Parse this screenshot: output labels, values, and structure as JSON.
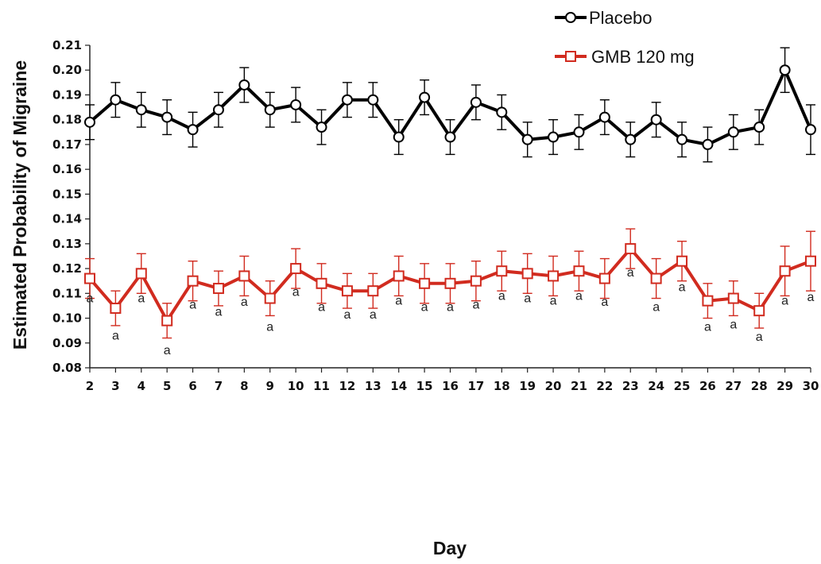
{
  "chart_data": {
    "type": "line",
    "xlabel": "Day",
    "ylabel": "Estimated Probability of Migraine",
    "ylim": [
      0.08,
      0.21
    ],
    "ytick_step": 0.01,
    "x": [
      2,
      3,
      4,
      5,
      6,
      7,
      8,
      9,
      10,
      11,
      12,
      13,
      14,
      15,
      16,
      17,
      18,
      19,
      20,
      21,
      22,
      23,
      24,
      25,
      26,
      27,
      28,
      29,
      30
    ],
    "legend_position": "top-right",
    "grid": false,
    "series": [
      {
        "name": "Placebo",
        "color": "#000000",
        "marker": "circle",
        "values": [
          0.179,
          0.188,
          0.184,
          0.181,
          0.176,
          0.184,
          0.194,
          0.184,
          0.186,
          0.177,
          0.188,
          0.188,
          0.173,
          0.189,
          0.173,
          0.187,
          0.183,
          0.172,
          0.173,
          0.175,
          0.181,
          0.172,
          0.18,
          0.172,
          0.17,
          0.175,
          0.177,
          0.2,
          0.176
        ],
        "errors": [
          0.007,
          0.007,
          0.007,
          0.007,
          0.007,
          0.007,
          0.007,
          0.007,
          0.007,
          0.007,
          0.007,
          0.007,
          0.007,
          0.007,
          0.007,
          0.007,
          0.007,
          0.007,
          0.007,
          0.007,
          0.007,
          0.007,
          0.007,
          0.007,
          0.007,
          0.007,
          0.007,
          0.009,
          0.01
        ]
      },
      {
        "name": "GMB 120 mg",
        "color": "#d12b1f",
        "marker": "square",
        "values": [
          0.116,
          0.104,
          0.118,
          0.099,
          0.115,
          0.112,
          0.117,
          0.108,
          0.12,
          0.114,
          0.111,
          0.111,
          0.117,
          0.114,
          0.114,
          0.115,
          0.119,
          0.118,
          0.117,
          0.119,
          0.116,
          0.128,
          0.116,
          0.123,
          0.107,
          0.108,
          0.103,
          0.119,
          0.123
        ],
        "errors": [
          0.008,
          0.007,
          0.008,
          0.007,
          0.008,
          0.007,
          0.008,
          0.007,
          0.008,
          0.008,
          0.007,
          0.007,
          0.008,
          0.008,
          0.008,
          0.008,
          0.008,
          0.008,
          0.008,
          0.008,
          0.008,
          0.008,
          0.008,
          0.008,
          0.007,
          0.007,
          0.007,
          0.01,
          0.012
        ]
      }
    ],
    "annotations": [
      {
        "x": 2,
        "y": 0.108,
        "text": "a"
      },
      {
        "x": 3,
        "y": 0.093,
        "text": "a"
      },
      {
        "x": 4,
        "y": 0.108,
        "text": "a"
      },
      {
        "x": 5,
        "y": 0.087,
        "text": "a"
      },
      {
        "x": 6,
        "y": 0.1055,
        "text": "a"
      },
      {
        "x": 7,
        "y": 0.1025,
        "text": "a"
      },
      {
        "x": 8,
        "y": 0.1065,
        "text": "a"
      },
      {
        "x": 9,
        "y": 0.0965,
        "text": "a"
      },
      {
        "x": 10,
        "y": 0.1105,
        "text": "a"
      },
      {
        "x": 11,
        "y": 0.1045,
        "text": "a"
      },
      {
        "x": 12,
        "y": 0.1015,
        "text": "a"
      },
      {
        "x": 13,
        "y": 0.1015,
        "text": "a"
      },
      {
        "x": 14,
        "y": 0.107,
        "text": "a"
      },
      {
        "x": 15,
        "y": 0.1045,
        "text": "a"
      },
      {
        "x": 16,
        "y": 0.1045,
        "text": "a"
      },
      {
        "x": 17,
        "y": 0.1055,
        "text": "a"
      },
      {
        "x": 18,
        "y": 0.109,
        "text": "a"
      },
      {
        "x": 19,
        "y": 0.108,
        "text": "a"
      },
      {
        "x": 20,
        "y": 0.107,
        "text": "a"
      },
      {
        "x": 21,
        "y": 0.109,
        "text": "a"
      },
      {
        "x": 22,
        "y": 0.1065,
        "text": "a"
      },
      {
        "x": 23,
        "y": 0.1185,
        "text": "a"
      },
      {
        "x": 24,
        "y": 0.1045,
        "text": "a"
      },
      {
        "x": 25,
        "y": 0.1125,
        "text": "a"
      },
      {
        "x": 26,
        "y": 0.0965,
        "text": "a"
      },
      {
        "x": 27,
        "y": 0.0975,
        "text": "a"
      },
      {
        "x": 28,
        "y": 0.0925,
        "text": "a"
      },
      {
        "x": 29,
        "y": 0.107,
        "text": "a"
      },
      {
        "x": 30,
        "y": 0.1085,
        "text": "a"
      }
    ]
  }
}
